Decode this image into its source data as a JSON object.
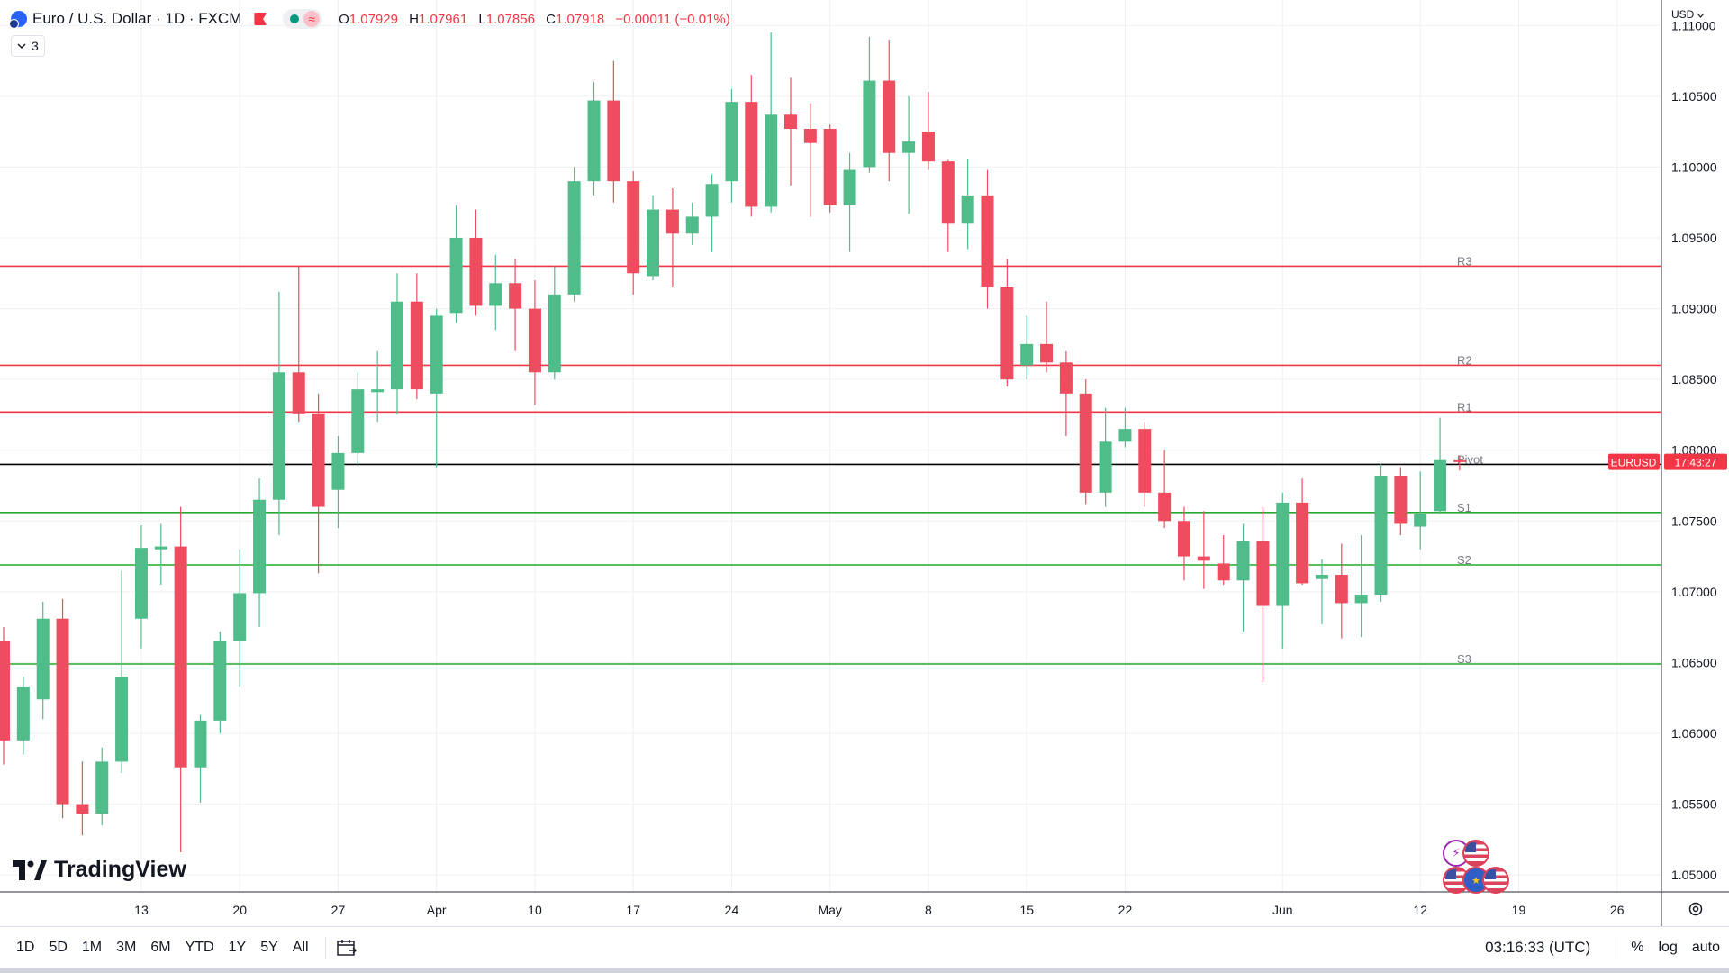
{
  "header": {
    "title": "Euro / U.S. Dollar · 1D · FXCM",
    "ohlc": [
      {
        "label": "O",
        "value": "1.07929"
      },
      {
        "label": "H",
        "value": "1.07961"
      },
      {
        "label": "L",
        "value": "1.07856"
      },
      {
        "label": "C",
        "value": "1.07918"
      }
    ],
    "change": "−0.00011 (−0.01%)",
    "wave_glyph": "≈",
    "indicator_count": "3"
  },
  "axis": {
    "currency": "USD"
  },
  "brand": {
    "name": "TradingView"
  },
  "event_icons": [
    "lightning-icon",
    "us-flag-icon",
    "us-flag-icon",
    "eu-flag-icon",
    "us-flag-icon"
  ],
  "toolbar": {
    "ranges": [
      "1D",
      "5D",
      "1M",
      "3M",
      "6M",
      "YTD",
      "1Y",
      "5Y",
      "All"
    ],
    "clock": "03:16:33 (UTC)",
    "percent": "%",
    "log": "log",
    "auto": "auto"
  },
  "colors": {
    "up": "#4fbc8a",
    "down": "#ee4d5f",
    "resistance": "#f23645",
    "support": "#22ab2f",
    "pivot": "#000000",
    "grid": "#eef0f3",
    "price_tag": "#f23645"
  },
  "chart_data": {
    "type": "candlestick",
    "symbol": "EURUSD",
    "y_range": [
      1.0488,
      1.1118
    ],
    "x_range_days": [
      0,
      88
    ],
    "y_ticks": [
      "1.11000",
      "1.10500",
      "1.10000",
      "1.09500",
      "1.09000",
      "1.08500",
      "1.08000",
      "1.07500",
      "1.07000",
      "1.06500",
      "1.06000",
      "1.05500",
      "1.05000"
    ],
    "x_ticks": [
      {
        "day": 7,
        "label": "13"
      },
      {
        "day": 12,
        "label": "20"
      },
      {
        "day": 17,
        "label": "27"
      },
      {
        "day": 22,
        "label": "Apr"
      },
      {
        "day": 27,
        "label": "10"
      },
      {
        "day": 32,
        "label": "17"
      },
      {
        "day": 37,
        "label": "24"
      },
      {
        "day": 42,
        "label": "May"
      },
      {
        "day": 47,
        "label": "8"
      },
      {
        "day": 52,
        "label": "15"
      },
      {
        "day": 57,
        "label": "22"
      },
      {
        "day": 65,
        "label": "Jun"
      },
      {
        "day": 72,
        "label": "12"
      },
      {
        "day": 77,
        "label": "19"
      },
      {
        "day": 82,
        "label": "26"
      }
    ],
    "levels": [
      {
        "name": "R3",
        "label": "R3",
        "value": 1.093,
        "kind": "resistance"
      },
      {
        "name": "R2",
        "label": "R2",
        "value": 1.086,
        "kind": "resistance"
      },
      {
        "name": "R1",
        "label": "R1",
        "value": 1.0827,
        "kind": "resistance"
      },
      {
        "name": "Pivot",
        "label": "Pivot",
        "value": 1.079,
        "kind": "pivot"
      },
      {
        "name": "S1",
        "label": "S1",
        "value": 1.0756,
        "kind": "support"
      },
      {
        "name": "S2",
        "label": "S2",
        "value": 1.0719,
        "kind": "support"
      },
      {
        "name": "S3",
        "label": "S3",
        "value": 1.0649,
        "kind": "support"
      }
    ],
    "last_price": {
      "value": 1.07918,
      "symbol_label": "EURUSD",
      "countdown": "17:43:27"
    },
    "candles": [
      {
        "day": 0,
        "o": 1.0665,
        "h": 1.0675,
        "l": 1.0578,
        "c": 1.0595
      },
      {
        "day": 1,
        "o": 1.0595,
        "h": 1.064,
        "l": 1.0585,
        "c": 1.0633
      },
      {
        "day": 2,
        "o": 1.0624,
        "h": 1.0693,
        "l": 1.061,
        "c": 1.0681
      },
      {
        "day": 3,
        "o": 1.0681,
        "h": 1.0695,
        "l": 1.054,
        "c": 1.055
      },
      {
        "day": 4,
        "o": 1.055,
        "h": 1.058,
        "l": 1.0528,
        "c": 1.0543
      },
      {
        "day": 5,
        "o": 1.0543,
        "h": 1.059,
        "l": 1.0535,
        "c": 1.058
      },
      {
        "day": 6,
        "o": 1.058,
        "h": 1.0715,
        "l": 1.0572,
        "c": 1.064
      },
      {
        "day": 7,
        "o": 1.0681,
        "h": 1.0747,
        "l": 1.066,
        "c": 1.0731
      },
      {
        "day": 8,
        "o": 1.073,
        "h": 1.0748,
        "l": 1.0705,
        "c": 1.0732
      },
      {
        "day": 9,
        "o": 1.0732,
        "h": 1.076,
        "l": 1.0516,
        "c": 1.0576
      },
      {
        "day": 10,
        "o": 1.0576,
        "h": 1.0613,
        "l": 1.0551,
        "c": 1.0609
      },
      {
        "day": 11,
        "o": 1.0609,
        "h": 1.0672,
        "l": 1.06,
        "c": 1.0665
      },
      {
        "day": 12,
        "o": 1.0665,
        "h": 1.073,
        "l": 1.0633,
        "c": 1.0699
      },
      {
        "day": 13,
        "o": 1.0699,
        "h": 1.078,
        "l": 1.0675,
        "c": 1.0765
      },
      {
        "day": 14,
        "o": 1.0765,
        "h": 1.0912,
        "l": 1.074,
        "c": 1.0855
      },
      {
        "day": 15,
        "o": 1.0855,
        "h": 1.093,
        "l": 1.082,
        "c": 1.0826
      },
      {
        "day": 16,
        "o": 1.0826,
        "h": 1.084,
        "l": 1.0713,
        "c": 1.076
      },
      {
        "day": 17,
        "o": 1.0772,
        "h": 1.081,
        "l": 1.0745,
        "c": 1.0798
      },
      {
        "day": 18,
        "o": 1.0798,
        "h": 1.0855,
        "l": 1.079,
        "c": 1.0843
      },
      {
        "day": 19,
        "o": 1.0841,
        "h": 1.087,
        "l": 1.082,
        "c": 1.0843
      },
      {
        "day": 20,
        "o": 1.0843,
        "h": 1.0925,
        "l": 1.0825,
        "c": 1.0905
      },
      {
        "day": 21,
        "o": 1.0905,
        "h": 1.0925,
        "l": 1.0836,
        "c": 1.0843
      },
      {
        "day": 22,
        "o": 1.084,
        "h": 1.09,
        "l": 1.0788,
        "c": 1.0895
      },
      {
        "day": 23,
        "o": 1.0897,
        "h": 1.0973,
        "l": 1.089,
        "c": 1.095
      },
      {
        "day": 24,
        "o": 1.095,
        "h": 1.097,
        "l": 1.0895,
        "c": 1.0902
      },
      {
        "day": 25,
        "o": 1.0902,
        "h": 1.0938,
        "l": 1.0885,
        "c": 1.0918
      },
      {
        "day": 26,
        "o": 1.0918,
        "h": 1.0935,
        "l": 1.087,
        "c": 1.09
      },
      {
        "day": 27,
        "o": 1.09,
        "h": 1.092,
        "l": 1.0832,
        "c": 1.0855
      },
      {
        "day": 28,
        "o": 1.0855,
        "h": 1.093,
        "l": 1.085,
        "c": 1.091
      },
      {
        "day": 29,
        "o": 1.091,
        "h": 1.1,
        "l": 1.0905,
        "c": 1.099
      },
      {
        "day": 30,
        "o": 1.099,
        "h": 1.106,
        "l": 1.098,
        "c": 1.1047
      },
      {
        "day": 31,
        "o": 1.1047,
        "h": 1.1075,
        "l": 1.0975,
        "c": 1.099
      },
      {
        "day": 32,
        "o": 1.099,
        "h": 1.0997,
        "l": 1.091,
        "c": 1.0925
      },
      {
        "day": 33,
        "o": 1.0923,
        "h": 1.098,
        "l": 1.092,
        "c": 1.097
      },
      {
        "day": 34,
        "o": 1.097,
        "h": 1.0985,
        "l": 1.0915,
        "c": 1.0953
      },
      {
        "day": 35,
        "o": 1.0953,
        "h": 1.0975,
        "l": 1.0945,
        "c": 1.0965
      },
      {
        "day": 36,
        "o": 1.0965,
        "h": 1.0995,
        "l": 1.094,
        "c": 1.0988
      },
      {
        "day": 37,
        "o": 1.099,
        "h": 1.1055,
        "l": 1.0975,
        "c": 1.1046
      },
      {
        "day": 38,
        "o": 1.1046,
        "h": 1.1065,
        "l": 1.0965,
        "c": 1.0972
      },
      {
        "day": 39,
        "o": 1.0972,
        "h": 1.1095,
        "l": 1.0968,
        "c": 1.1037
      },
      {
        "day": 40,
        "o": 1.1037,
        "h": 1.1063,
        "l": 1.0987,
        "c": 1.1027
      },
      {
        "day": 41,
        "o": 1.1027,
        "h": 1.1045,
        "l": 1.0965,
        "c": 1.1017
      },
      {
        "day": 42,
        "o": 1.1027,
        "h": 1.103,
        "l": 1.0968,
        "c": 1.0973
      },
      {
        "day": 43,
        "o": 1.0973,
        "h": 1.101,
        "l": 1.094,
        "c": 1.0998
      },
      {
        "day": 44,
        "o": 1.1,
        "h": 1.1092,
        "l": 1.0996,
        "c": 1.1061
      },
      {
        "day": 45,
        "o": 1.1061,
        "h": 1.109,
        "l": 1.099,
        "c": 1.101
      },
      {
        "day": 46,
        "o": 1.101,
        "h": 1.105,
        "l": 1.0967,
        "c": 1.1018
      },
      {
        "day": 47,
        "o": 1.1025,
        "h": 1.1053,
        "l": 1.0998,
        "c": 1.1004
      },
      {
        "day": 48,
        "o": 1.1004,
        "h": 1.1005,
        "l": 1.094,
        "c": 1.096
      },
      {
        "day": 49,
        "o": 1.096,
        "h": 1.1006,
        "l": 1.0942,
        "c": 1.098
      },
      {
        "day": 50,
        "o": 1.098,
        "h": 1.0998,
        "l": 1.09,
        "c": 1.0915
      },
      {
        "day": 51,
        "o": 1.0915,
        "h": 1.0935,
        "l": 1.0845,
        "c": 1.085
      },
      {
        "day": 52,
        "o": 1.086,
        "h": 1.0895,
        "l": 1.085,
        "c": 1.0875
      },
      {
        "day": 53,
        "o": 1.0875,
        "h": 1.0905,
        "l": 1.0855,
        "c": 1.0862
      },
      {
        "day": 54,
        "o": 1.0862,
        "h": 1.087,
        "l": 1.081,
        "c": 1.084
      },
      {
        "day": 55,
        "o": 1.084,
        "h": 1.085,
        "l": 1.0762,
        "c": 1.077
      },
      {
        "day": 56,
        "o": 1.077,
        "h": 1.083,
        "l": 1.076,
        "c": 1.0806
      },
      {
        "day": 57,
        "o": 1.0806,
        "h": 1.083,
        "l": 1.0802,
        "c": 1.0815
      },
      {
        "day": 58,
        "o": 1.0815,
        "h": 1.082,
        "l": 1.076,
        "c": 1.077
      },
      {
        "day": 59,
        "o": 1.077,
        "h": 1.08,
        "l": 1.0745,
        "c": 1.075
      },
      {
        "day": 60,
        "o": 1.075,
        "h": 1.076,
        "l": 1.0708,
        "c": 1.0725
      },
      {
        "day": 61,
        "o": 1.0725,
        "h": 1.0757,
        "l": 1.0702,
        "c": 1.0722
      },
      {
        "day": 62,
        "o": 1.072,
        "h": 1.074,
        "l": 1.0705,
        "c": 1.0708
      },
      {
        "day": 63,
        "o": 1.0708,
        "h": 1.0748,
        "l": 1.0672,
        "c": 1.0736
      },
      {
        "day": 64,
        "o": 1.0736,
        "h": 1.076,
        "l": 1.0636,
        "c": 1.069
      },
      {
        "day": 65,
        "o": 1.069,
        "h": 1.077,
        "l": 1.066,
        "c": 1.0763
      },
      {
        "day": 66,
        "o": 1.0763,
        "h": 1.078,
        "l": 1.0705,
        "c": 1.0706
      },
      {
        "day": 67,
        "o": 1.0709,
        "h": 1.0723,
        "l": 1.0677,
        "c": 1.0712
      },
      {
        "day": 68,
        "o": 1.0712,
        "h": 1.0734,
        "l": 1.0667,
        "c": 1.0692
      },
      {
        "day": 69,
        "o": 1.0692,
        "h": 1.074,
        "l": 1.0668,
        "c": 1.0698
      },
      {
        "day": 70,
        "o": 1.0698,
        "h": 1.079,
        "l": 1.0693,
        "c": 1.0782
      },
      {
        "day": 71,
        "o": 1.0782,
        "h": 1.0788,
        "l": 1.074,
        "c": 1.0748
      },
      {
        "day": 72,
        "o": 1.0746,
        "h": 1.0785,
        "l": 1.073,
        "c": 1.0755
      },
      {
        "day": 73,
        "o": 1.0757,
        "h": 1.0823,
        "l": 1.0755,
        "c": 1.0793
      },
      {
        "day": 74,
        "o": 1.07929,
        "h": 1.07961,
        "l": 1.07856,
        "c": 1.07918
      }
    ]
  }
}
